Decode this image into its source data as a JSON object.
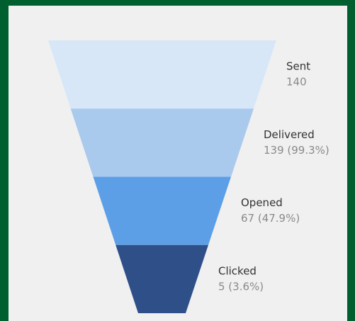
{
  "chart_data": {
    "type": "funnel",
    "categories": [
      "Sent",
      "Delivered",
      "Opened",
      "Clicked"
    ],
    "values": [
      140,
      139,
      67,
      5
    ],
    "value_labels": [
      "140",
      "139 (99.3%)",
      "67 (47.9%)",
      "5 (3.6%)"
    ],
    "colors": [
      "#d7e7f8",
      "#a9c9ed",
      "#5c9fe7",
      "#2f4f89"
    ]
  }
}
